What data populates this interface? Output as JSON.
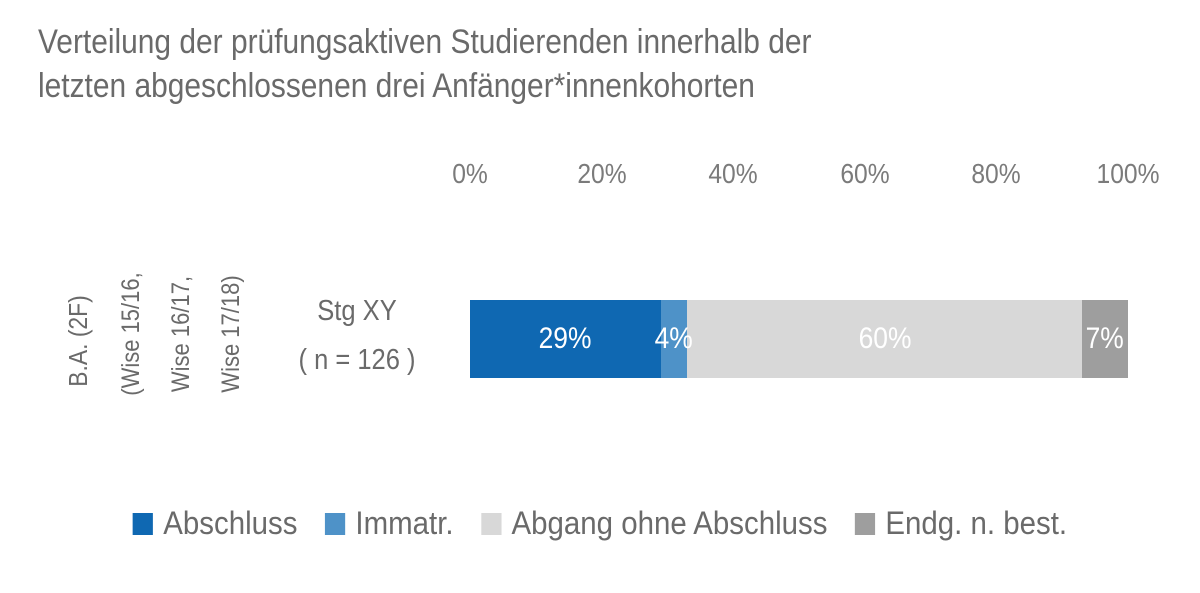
{
  "chart_data": {
    "type": "bar",
    "orientation": "horizontal",
    "stacked": true,
    "title": "Verteilung der prüfungsaktiven Studierenden innerhalb der\nletzten abgeschlossenen drei Anfänger*innenkohorten",
    "x_ticks": [
      "0%",
      "20%",
      "40%",
      "60%",
      "80%",
      "100%"
    ],
    "xlim": [
      0,
      100
    ],
    "grid": false,
    "legend_position": "bottom",
    "group_label": "B.A. (2F)",
    "cohort_label": "(Wise 15/16,\nWise 16/17,\nWise 17/18)",
    "category_label": "Stg XY\n( n = 126 )",
    "categories": [
      "Stg XY (n = 126)"
    ],
    "series": [
      {
        "name": "Abschluss",
        "value": 29,
        "label": "29%",
        "color": "#0f68b2"
      },
      {
        "name": "Immatr.",
        "value": 4,
        "label": "4%",
        "color": "#4e92c8"
      },
      {
        "name": "Abgang ohne Abschluss",
        "value": 60,
        "label": "60%",
        "color": "#d8d8d8"
      },
      {
        "name": "Endg. n. best.",
        "value": 7,
        "label": "7%",
        "color": "#9e9e9e"
      }
    ]
  }
}
